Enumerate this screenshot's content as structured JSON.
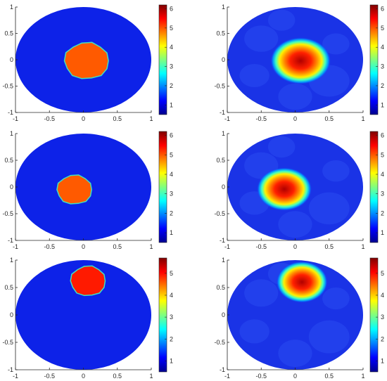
{
  "figure": {
    "panels": [
      {
        "id": "r1-truth",
        "kind": "truth",
        "cmax_label": "6",
        "ticks": [
          "1",
          "2",
          "3",
          "4",
          "5",
          "6"
        ],
        "cmax": 6.2
      },
      {
        "id": "r1-recon",
        "kind": "recon",
        "cmax_label": "6",
        "ticks": [
          "1",
          "2",
          "3",
          "4",
          "5",
          "6"
        ],
        "cmax": 6.2
      },
      {
        "id": "r2-truth",
        "kind": "truth",
        "cmax_label": "6",
        "ticks": [
          "1",
          "2",
          "3",
          "4",
          "5",
          "6"
        ],
        "cmax": 6.2
      },
      {
        "id": "r2-recon",
        "kind": "recon",
        "cmax_label": "6",
        "ticks": [
          "1",
          "2",
          "3",
          "4",
          "5",
          "6"
        ],
        "cmax": 6.2
      },
      {
        "id": "r3-truth",
        "kind": "truth",
        "cmax_label": "5",
        "ticks": [
          "1",
          "2",
          "3",
          "4",
          "5"
        ],
        "cmax": 5.7
      },
      {
        "id": "r3-recon",
        "kind": "recon",
        "cmax_label": "5",
        "ticks": [
          "1",
          "2",
          "3",
          "4",
          "5"
        ],
        "cmax": 5.7
      }
    ]
  },
  "chart_data": [
    {
      "type": "heatmap",
      "description_row": 1,
      "panel": "left",
      "xlim": [
        -1,
        1
      ],
      "ylim": [
        -1,
        1
      ],
      "xticks": [
        "-1",
        "-0.5",
        "0",
        "0.5",
        "1"
      ],
      "yticks": [
        "1",
        "0.5",
        "0",
        "-0.5",
        "-1"
      ],
      "colorbar": {
        "min": 0.5,
        "max": 6.2,
        "ticks": [
          1,
          2,
          3,
          4,
          5,
          6
        ]
      },
      "background_value": 0.8,
      "inclusion": {
        "cx": 0.05,
        "cy": -0.02,
        "r": 0.33,
        "value": 4.8
      }
    },
    {
      "type": "heatmap",
      "description_row": 1,
      "panel": "right",
      "xlim": [
        -1,
        1
      ],
      "ylim": [
        -1,
        1
      ],
      "xticks": [
        "-1",
        "-0.5",
        "0",
        "0.5",
        "1"
      ],
      "yticks": [
        "1",
        "0.5",
        "0",
        "-0.5",
        "-1"
      ],
      "colorbar": {
        "min": 0.5,
        "max": 6.2,
        "ticks": [
          1,
          2,
          3,
          4,
          5,
          6
        ]
      },
      "background_value": 1.0,
      "inclusion": {
        "cx": 0.08,
        "cy": -0.02,
        "r": 0.33,
        "peak": 6.0
      }
    },
    {
      "type": "heatmap",
      "description_row": 2,
      "panel": "left",
      "xlim": [
        -1,
        1
      ],
      "ylim": [
        -1,
        1
      ],
      "xticks": [
        "-1",
        "-0.5",
        "0",
        "0.5",
        "1"
      ],
      "yticks": [
        "1",
        "0.5",
        "0",
        "-0.5",
        "-1"
      ],
      "colorbar": {
        "min": 0.5,
        "max": 6.2,
        "ticks": [
          1,
          2,
          3,
          4,
          5,
          6
        ]
      },
      "background_value": 0.8,
      "inclusion": {
        "cx": -0.13,
        "cy": -0.05,
        "r": 0.26,
        "value": 4.8
      }
    },
    {
      "type": "heatmap",
      "description_row": 2,
      "panel": "right",
      "xlim": [
        -1,
        1
      ],
      "ylim": [
        -1,
        1
      ],
      "xticks": [
        "-1",
        "-0.5",
        "0",
        "0.5",
        "1"
      ],
      "yticks": [
        "1",
        "0.5",
        "0",
        "-0.5",
        "-1"
      ],
      "colorbar": {
        "min": 0.5,
        "max": 6.2,
        "ticks": [
          1,
          2,
          3,
          4,
          5,
          6
        ]
      },
      "background_value": 1.0,
      "inclusion": {
        "cx": -0.16,
        "cy": -0.04,
        "r": 0.3,
        "peak": 6.0
      }
    },
    {
      "type": "heatmap",
      "description_row": 3,
      "panel": "left",
      "xlim": [
        -1,
        1
      ],
      "ylim": [
        -1,
        1
      ],
      "xticks": [
        "-1",
        "-0.5",
        "0",
        "0.5",
        "1"
      ],
      "yticks": [
        "1",
        "0.5",
        "0",
        "-0.5",
        "-1"
      ],
      "colorbar": {
        "min": 0.5,
        "max": 5.7,
        "ticks": [
          1,
          2,
          3,
          4,
          5
        ]
      },
      "background_value": 0.8,
      "inclusion": {
        "cx": 0.07,
        "cy": 0.62,
        "r": 0.26,
        "value": 5.4
      }
    },
    {
      "type": "heatmap",
      "description_row": 3,
      "panel": "right",
      "xlim": [
        -1,
        1
      ],
      "ylim": [
        -1,
        1
      ],
      "xticks": [
        "-1",
        "-0.5",
        "0",
        "0.5",
        "1"
      ],
      "yticks": [
        "1",
        "0.5",
        "0",
        "-0.5",
        "-1"
      ],
      "colorbar": {
        "min": 0.5,
        "max": 5.7,
        "ticks": [
          1,
          2,
          3,
          4,
          5
        ]
      },
      "background_value": 1.0,
      "inclusion": {
        "cx": 0.1,
        "cy": 0.6,
        "r": 0.28,
        "peak": 5.5
      }
    }
  ]
}
